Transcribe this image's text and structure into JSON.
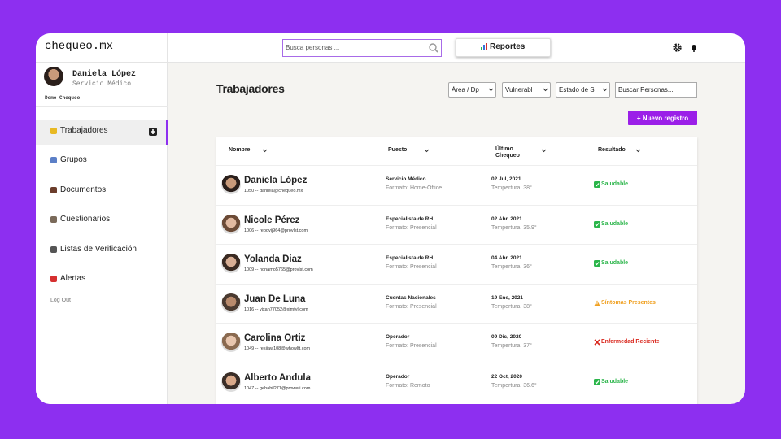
{
  "brand": "chequeo.mx",
  "user": {
    "name": "Daniela López",
    "role": "Servicio Médico",
    "org": "Demo Chequeo"
  },
  "nav": [
    "Trabajadores",
    "Grupos",
    "Documentos",
    "Cuestionarios",
    "Listas de Verificación",
    "Alertas"
  ],
  "logout": "Log Out",
  "search_placeholder": "Busca personas ...",
  "reports_button": "Reportes",
  "page_title": "Trabajadores",
  "filters": [
    "Área / Dp",
    "Vulnerabl",
    "Estado de S"
  ],
  "filter_search": "Buscar Personas...",
  "new_button": "+ Nuevo registro",
  "table": {
    "columns": [
      "Nombre",
      "Puesto",
      "Último Chequeo",
      "Resultado"
    ],
    "rows": [
      {
        "name": "Daniela López",
        "contact": "1050 -- daniela@chequeo.mx",
        "position": "Servicio Médico",
        "format": "Formato: Home-Office",
        "date": "02 Jul, 2021",
        "temperature": "Tempertura: 38°",
        "result": "Saludable",
        "result_color": "#2bb54a"
      },
      {
        "name": "Nicole Pérez",
        "contact": "1006 -- repovij964@provlst.com",
        "position": "Especialista de RH",
        "format": "Formato: Presencial",
        "date": "02 Abr, 2021",
        "temperature": "Tempertura: 35.9°",
        "result": "Saludable",
        "result_color": "#2bb54a"
      },
      {
        "name": "Yolanda Diaz",
        "contact": "1009 -- nonamo5765@provlst.com",
        "position": "Especialista de RH",
        "format": "Formato: Presencial",
        "date": "04 Abr, 2021",
        "temperature": "Tempertura: 36°",
        "result": "Saludable",
        "result_color": "#2bb54a"
      },
      {
        "name": "Juan  De Luna",
        "contact": "1016 -- yixan77052@ximtyl.com",
        "position": "Cuentas Nacionales",
        "format": "Formato: Presencial",
        "date": "19 Ene, 2021",
        "temperature": "Tempertura: 38°",
        "result": "Síntomas Presentes",
        "result_color": "#f0a020"
      },
      {
        "name": "Carolina Ortiz",
        "contact": "1049 -- resijaw108@whowlft.com",
        "position": "Operador",
        "format": "Formato: Presencial",
        "date": "09 Dic, 2020",
        "temperature": "Tempertura: 37°",
        "result": "Enfermedad Reciente",
        "result_color": "#d9261c"
      },
      {
        "name": "Alberto Andula",
        "contact": "1047 -- gehabil271@proweri.com",
        "position": "Operador",
        "format": "Formato: Remoto",
        "date": "22 Oct, 2020",
        "temperature": "Tempertura: 36.6°",
        "result": "Saludable",
        "result_color": "#2bb54a"
      }
    ]
  }
}
